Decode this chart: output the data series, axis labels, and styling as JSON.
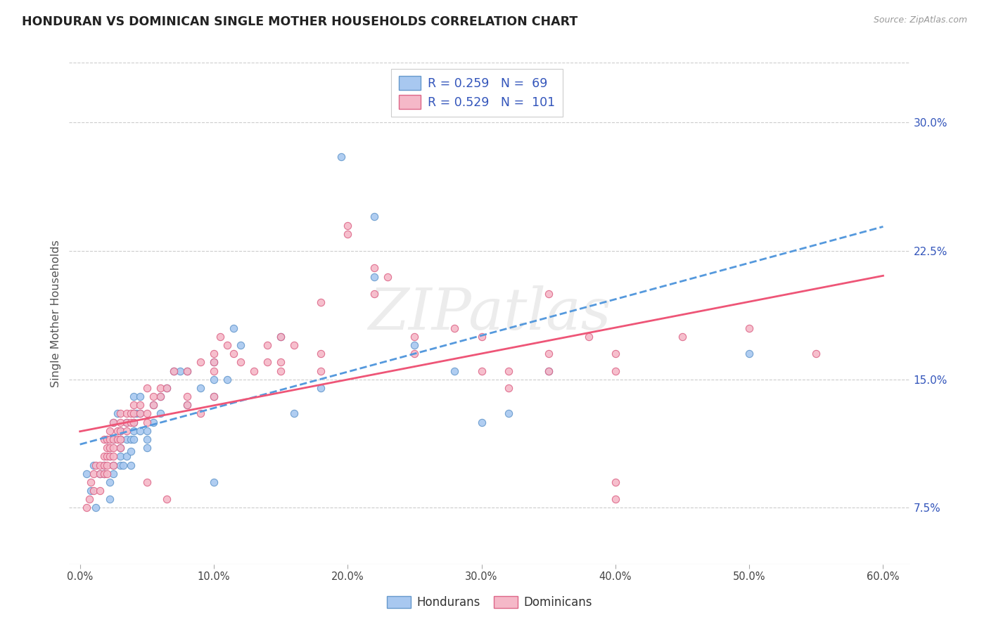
{
  "title": "HONDURAN VS DOMINICAN SINGLE MOTHER HOUSEHOLDS CORRELATION CHART",
  "source": "Source: ZipAtlas.com",
  "ylabel": "Single Mother Households",
  "xlabel_ticks": [
    "0.0%",
    "10.0%",
    "20.0%",
    "30.0%",
    "40.0%",
    "50.0%",
    "60.0%"
  ],
  "xlabel_vals": [
    0.0,
    0.1,
    0.2,
    0.3,
    0.4,
    0.5,
    0.6
  ],
  "ylabel_ticks": [
    "7.5%",
    "15.0%",
    "22.5%",
    "30.0%"
  ],
  "ylabel_vals": [
    0.075,
    0.15,
    0.225,
    0.3
  ],
  "honduran_R": "0.259",
  "honduran_N": "69",
  "dominican_R": "0.529",
  "dominican_N": "101",
  "honduran_color": "#a8c8f0",
  "dominican_color": "#f5b8c8",
  "honduran_edge_color": "#6699cc",
  "dominican_edge_color": "#dd6688",
  "honduran_line_color": "#5599dd",
  "dominican_line_color": "#ee5577",
  "background_color": "#ffffff",
  "grid_color": "#cccccc",
  "title_color": "#222222",
  "axis_label_color": "#555555",
  "text_blue": "#3355bb",
  "watermark": "ZIPatlas",
  "honduran_points": [
    [
      0.005,
      0.095
    ],
    [
      0.008,
      0.085
    ],
    [
      0.01,
      0.1
    ],
    [
      0.012,
      0.075
    ],
    [
      0.015,
      0.095
    ],
    [
      0.018,
      0.095
    ],
    [
      0.018,
      0.1
    ],
    [
      0.02,
      0.115
    ],
    [
      0.022,
      0.105
    ],
    [
      0.022,
      0.09
    ],
    [
      0.022,
      0.08
    ],
    [
      0.025,
      0.125
    ],
    [
      0.025,
      0.115
    ],
    [
      0.025,
      0.1
    ],
    [
      0.025,
      0.095
    ],
    [
      0.028,
      0.13
    ],
    [
      0.03,
      0.12
    ],
    [
      0.03,
      0.115
    ],
    [
      0.03,
      0.11
    ],
    [
      0.03,
      0.105
    ],
    [
      0.03,
      0.1
    ],
    [
      0.032,
      0.1
    ],
    [
      0.035,
      0.125
    ],
    [
      0.035,
      0.115
    ],
    [
      0.035,
      0.105
    ],
    [
      0.038,
      0.115
    ],
    [
      0.038,
      0.108
    ],
    [
      0.038,
      0.1
    ],
    [
      0.04,
      0.14
    ],
    [
      0.04,
      0.13
    ],
    [
      0.04,
      0.125
    ],
    [
      0.04,
      0.12
    ],
    [
      0.04,
      0.115
    ],
    [
      0.042,
      0.13
    ],
    [
      0.045,
      0.14
    ],
    [
      0.045,
      0.13
    ],
    [
      0.045,
      0.12
    ],
    [
      0.05,
      0.12
    ],
    [
      0.05,
      0.115
    ],
    [
      0.05,
      0.11
    ],
    [
      0.055,
      0.135
    ],
    [
      0.055,
      0.125
    ],
    [
      0.06,
      0.14
    ],
    [
      0.06,
      0.13
    ],
    [
      0.065,
      0.145
    ],
    [
      0.07,
      0.155
    ],
    [
      0.075,
      0.155
    ],
    [
      0.08,
      0.155
    ],
    [
      0.08,
      0.135
    ],
    [
      0.09,
      0.145
    ],
    [
      0.1,
      0.16
    ],
    [
      0.1,
      0.15
    ],
    [
      0.1,
      0.14
    ],
    [
      0.1,
      0.09
    ],
    [
      0.11,
      0.15
    ],
    [
      0.115,
      0.18
    ],
    [
      0.12,
      0.17
    ],
    [
      0.15,
      0.175
    ],
    [
      0.16,
      0.13
    ],
    [
      0.18,
      0.145
    ],
    [
      0.195,
      0.28
    ],
    [
      0.22,
      0.245
    ],
    [
      0.22,
      0.21
    ],
    [
      0.25,
      0.17
    ],
    [
      0.28,
      0.155
    ],
    [
      0.3,
      0.125
    ],
    [
      0.32,
      0.13
    ],
    [
      0.35,
      0.155
    ],
    [
      0.5,
      0.165
    ]
  ],
  "dominican_points": [
    [
      0.005,
      0.075
    ],
    [
      0.007,
      0.08
    ],
    [
      0.008,
      0.09
    ],
    [
      0.01,
      0.095
    ],
    [
      0.01,
      0.085
    ],
    [
      0.012,
      0.1
    ],
    [
      0.015,
      0.1
    ],
    [
      0.015,
      0.095
    ],
    [
      0.015,
      0.085
    ],
    [
      0.018,
      0.115
    ],
    [
      0.018,
      0.105
    ],
    [
      0.018,
      0.1
    ],
    [
      0.018,
      0.095
    ],
    [
      0.02,
      0.115
    ],
    [
      0.02,
      0.11
    ],
    [
      0.02,
      0.105
    ],
    [
      0.02,
      0.1
    ],
    [
      0.02,
      0.095
    ],
    [
      0.022,
      0.12
    ],
    [
      0.022,
      0.115
    ],
    [
      0.022,
      0.11
    ],
    [
      0.022,
      0.105
    ],
    [
      0.025,
      0.125
    ],
    [
      0.025,
      0.115
    ],
    [
      0.025,
      0.11
    ],
    [
      0.025,
      0.105
    ],
    [
      0.025,
      0.1
    ],
    [
      0.028,
      0.12
    ],
    [
      0.028,
      0.115
    ],
    [
      0.03,
      0.13
    ],
    [
      0.03,
      0.125
    ],
    [
      0.03,
      0.12
    ],
    [
      0.03,
      0.115
    ],
    [
      0.03,
      0.11
    ],
    [
      0.035,
      0.13
    ],
    [
      0.035,
      0.125
    ],
    [
      0.035,
      0.12
    ],
    [
      0.038,
      0.13
    ],
    [
      0.038,
      0.125
    ],
    [
      0.04,
      0.135
    ],
    [
      0.04,
      0.13
    ],
    [
      0.04,
      0.125
    ],
    [
      0.045,
      0.135
    ],
    [
      0.045,
      0.13
    ],
    [
      0.05,
      0.145
    ],
    [
      0.05,
      0.13
    ],
    [
      0.05,
      0.125
    ],
    [
      0.05,
      0.09
    ],
    [
      0.055,
      0.14
    ],
    [
      0.055,
      0.135
    ],
    [
      0.06,
      0.145
    ],
    [
      0.06,
      0.14
    ],
    [
      0.065,
      0.145
    ],
    [
      0.065,
      0.08
    ],
    [
      0.07,
      0.155
    ],
    [
      0.08,
      0.155
    ],
    [
      0.08,
      0.14
    ],
    [
      0.08,
      0.135
    ],
    [
      0.09,
      0.16
    ],
    [
      0.09,
      0.13
    ],
    [
      0.1,
      0.165
    ],
    [
      0.1,
      0.16
    ],
    [
      0.1,
      0.155
    ],
    [
      0.1,
      0.14
    ],
    [
      0.105,
      0.175
    ],
    [
      0.11,
      0.17
    ],
    [
      0.115,
      0.165
    ],
    [
      0.12,
      0.16
    ],
    [
      0.13,
      0.155
    ],
    [
      0.14,
      0.17
    ],
    [
      0.14,
      0.16
    ],
    [
      0.15,
      0.175
    ],
    [
      0.15,
      0.16
    ],
    [
      0.15,
      0.155
    ],
    [
      0.16,
      0.17
    ],
    [
      0.18,
      0.195
    ],
    [
      0.18,
      0.165
    ],
    [
      0.18,
      0.155
    ],
    [
      0.2,
      0.24
    ],
    [
      0.2,
      0.235
    ],
    [
      0.22,
      0.215
    ],
    [
      0.22,
      0.2
    ],
    [
      0.23,
      0.21
    ],
    [
      0.25,
      0.175
    ],
    [
      0.25,
      0.165
    ],
    [
      0.28,
      0.18
    ],
    [
      0.3,
      0.175
    ],
    [
      0.3,
      0.155
    ],
    [
      0.32,
      0.155
    ],
    [
      0.32,
      0.145
    ],
    [
      0.35,
      0.2
    ],
    [
      0.35,
      0.165
    ],
    [
      0.35,
      0.155
    ],
    [
      0.38,
      0.175
    ],
    [
      0.4,
      0.165
    ],
    [
      0.4,
      0.155
    ],
    [
      0.4,
      0.09
    ],
    [
      0.4,
      0.08
    ],
    [
      0.45,
      0.175
    ],
    [
      0.5,
      0.18
    ],
    [
      0.55,
      0.165
    ]
  ]
}
